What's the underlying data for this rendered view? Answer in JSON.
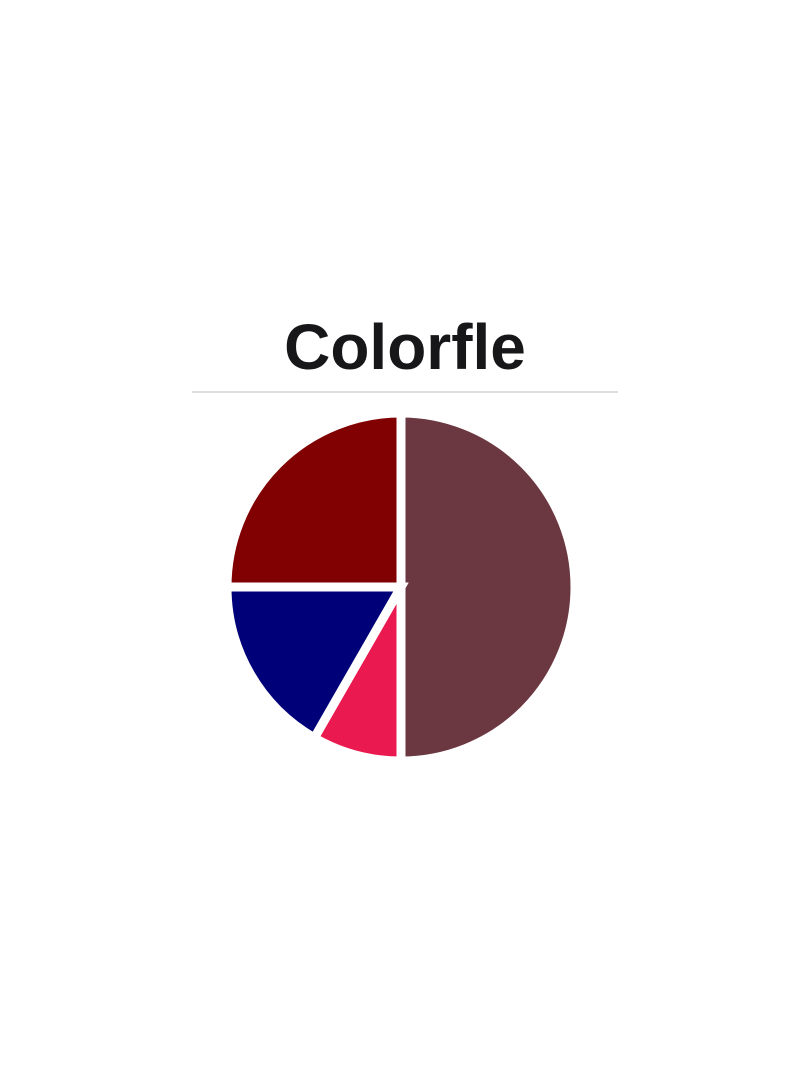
{
  "header": {
    "title": "Colorfle"
  },
  "theme": {
    "background_color": "#ffffff",
    "title_color": "#17171a",
    "divider_color": "#dedede",
    "slice_gap_color": "#ffffff"
  },
  "chart_data": {
    "type": "pie",
    "title": "",
    "legend_position": "none",
    "labels_shown": false,
    "start_angle_deg": 0,
    "direction": "clockwise",
    "gap_stroke_width": 9,
    "slices": [
      {
        "name": "result-wine",
        "value": 50,
        "color": "#6B3741"
      },
      {
        "name": "crimson-pink",
        "value": 8.3,
        "color": "#EA1A51"
      },
      {
        "name": "navy",
        "value": 16.7,
        "color": "#000078"
      },
      {
        "name": "maroon",
        "value": 25,
        "color": "#810102"
      }
    ]
  }
}
